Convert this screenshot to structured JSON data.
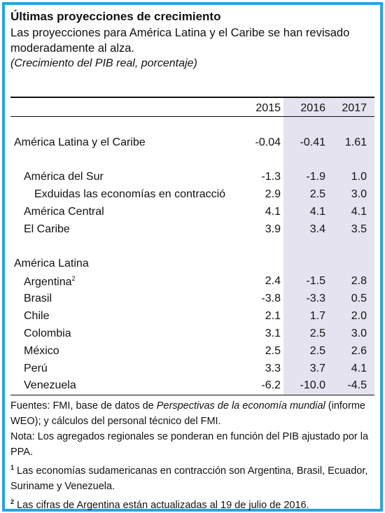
{
  "header": {
    "title": "Últimas proyecciones de crecimiento",
    "subtitle": "Las proyecciones para América Latina y el Caribe se han revisado moderadamente al alza.",
    "units": "(Crecimiento del PIB real, porcentaje)"
  },
  "table": {
    "years": [
      "2015",
      "2016",
      "2017"
    ],
    "rows": [
      {
        "label": "América Latina y el Caribe",
        "v": [
          "-0.04",
          "-0.41",
          "1.61"
        ]
      },
      {
        "label": "América del Sur",
        "v": [
          "-1.3",
          "-1.9",
          "1.0"
        ]
      },
      {
        "label": "Exduidas las economías en contracció",
        "v": [
          "2.9",
          "2.5",
          "3.0"
        ]
      },
      {
        "label": "América Central",
        "v": [
          "4.1",
          "4.1",
          "4.1"
        ]
      },
      {
        "label": "El Caribe",
        "v": [
          "3.9",
          "3.4",
          "3.5"
        ]
      },
      {
        "label": "América Latina",
        "v": [
          "",
          "",
          ""
        ]
      },
      {
        "label": "Argentina",
        "sup": "2",
        "v": [
          "2.4",
          "-1.5",
          "2.8"
        ]
      },
      {
        "label": "Brasil",
        "v": [
          "-3.8",
          "-3.3",
          "0.5"
        ]
      },
      {
        "label": "Chile",
        "v": [
          "2.1",
          "1.7",
          "2.0"
        ]
      },
      {
        "label": "Colombia",
        "v": [
          "3.1",
          "2.5",
          "3.0"
        ]
      },
      {
        "label": "México",
        "v": [
          "2.5",
          "2.5",
          "2.6"
        ]
      },
      {
        "label": "Perú",
        "v": [
          "3.3",
          "3.7",
          "4.1"
        ]
      },
      {
        "label": "Venezuela",
        "v": [
          "-6.2",
          "-10.0",
          "-4.5"
        ]
      }
    ]
  },
  "notes": {
    "sources_prefix": "Fuentes: FMI, base de datos de ",
    "sources_italic": "Perspectivas de la economía mundial",
    "sources_suffix": " (informe WEO); y cálculos del personal técnico del FMI.",
    "nota": "Nota: Los agregados regionales se ponderan en función del PIB ajustado por la PPA.",
    "fn1_mark": "1",
    "fn1": " Las economías sudamericanas en contracción son Argentina, Brasil, Ecuador, Suriname y Venezuela.",
    "fn2_mark": "2",
    "fn2": " Las cifras de Argentina están actualizadas al 19 de julio de 2016."
  }
}
